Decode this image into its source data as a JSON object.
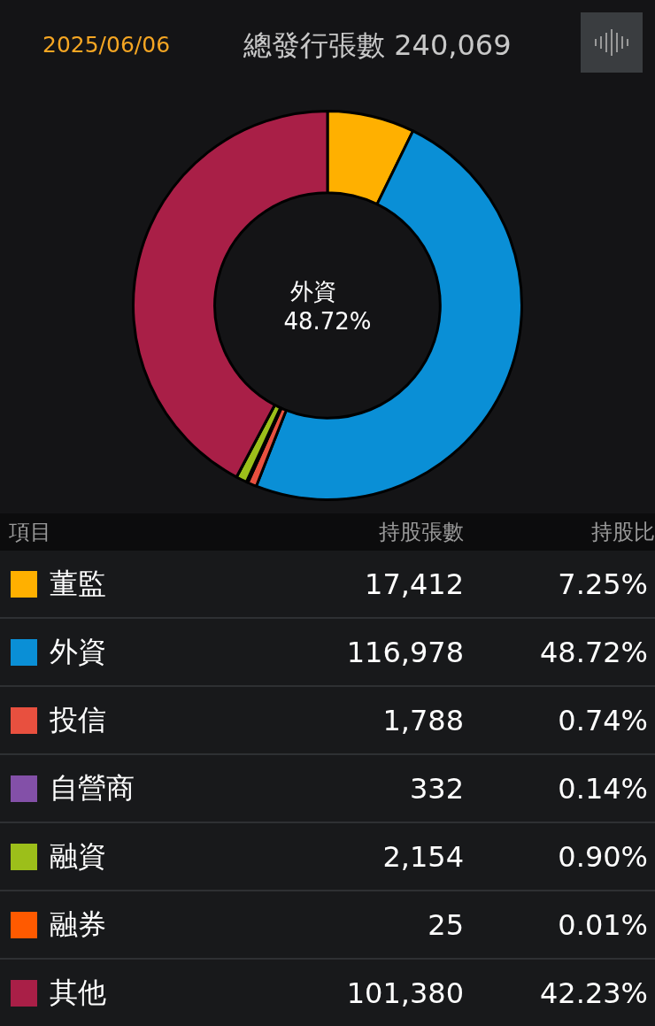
{
  "chart_data": {
    "type": "donut",
    "title": "總發行張數 240,069",
    "subtitle": "2025/06/06",
    "categories": [
      "董監",
      "外資",
      "投信",
      "自營商",
      "融資",
      "融券",
      "其他"
    ],
    "values": [
      7.25,
      48.72,
      0.74,
      0.14,
      0.9,
      0.01,
      42.23
    ],
    "value_labels": [
      "7.25%",
      "48.72%",
      "0.74%",
      "0.14%",
      "0.90%",
      "0.01%",
      "42.23%"
    ],
    "colors": [
      "#ffb000",
      "#0a8fd6",
      "#e8503f",
      "#8350a8",
      "#9cbf1a",
      "#ff5a00",
      "#a91f47"
    ],
    "legend": "bottom",
    "annotations": [
      "外資",
      "48.72%",
      "項目",
      "持股張數",
      "持股比",
      {
        "text": "17,412",
        "x": "董監"
      },
      {
        "text": "116,978",
        "x": "外資"
      },
      {
        "text": "1,788",
        "x": "投信"
      },
      {
        "text": "332",
        "x": "自營商"
      },
      {
        "text": "2,154",
        "x": "融資"
      },
      {
        "text": "25",
        "x": "融券"
      },
      {
        "text": "101,380",
        "x": "其他"
      }
    ]
  }
}
